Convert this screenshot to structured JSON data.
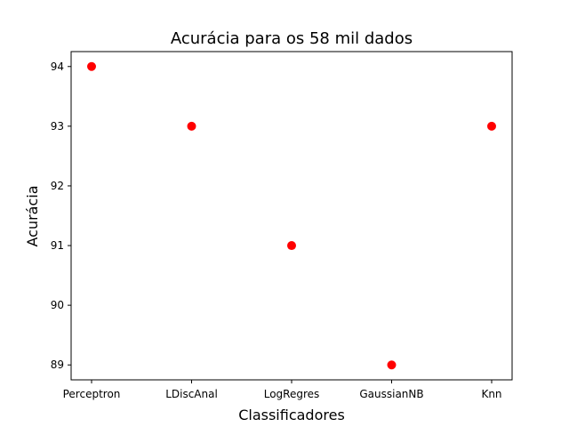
{
  "chart_data": {
    "type": "scatter",
    "title": "Acurácia para os 58 mil dados",
    "xlabel": "Classificadores",
    "ylabel": "Acurácia",
    "categories": [
      "Perceptron",
      "LDiscAnal",
      "LogRegres",
      "GaussianNB",
      "Knn"
    ],
    "series": [
      {
        "values": [
          94,
          93,
          91,
          89,
          93
        ],
        "color": "#ff0000"
      }
    ],
    "ylim": [
      88.75,
      94.25
    ],
    "yticks": [
      89,
      90,
      91,
      92,
      93,
      94
    ],
    "grid": false,
    "legend": "none"
  }
}
